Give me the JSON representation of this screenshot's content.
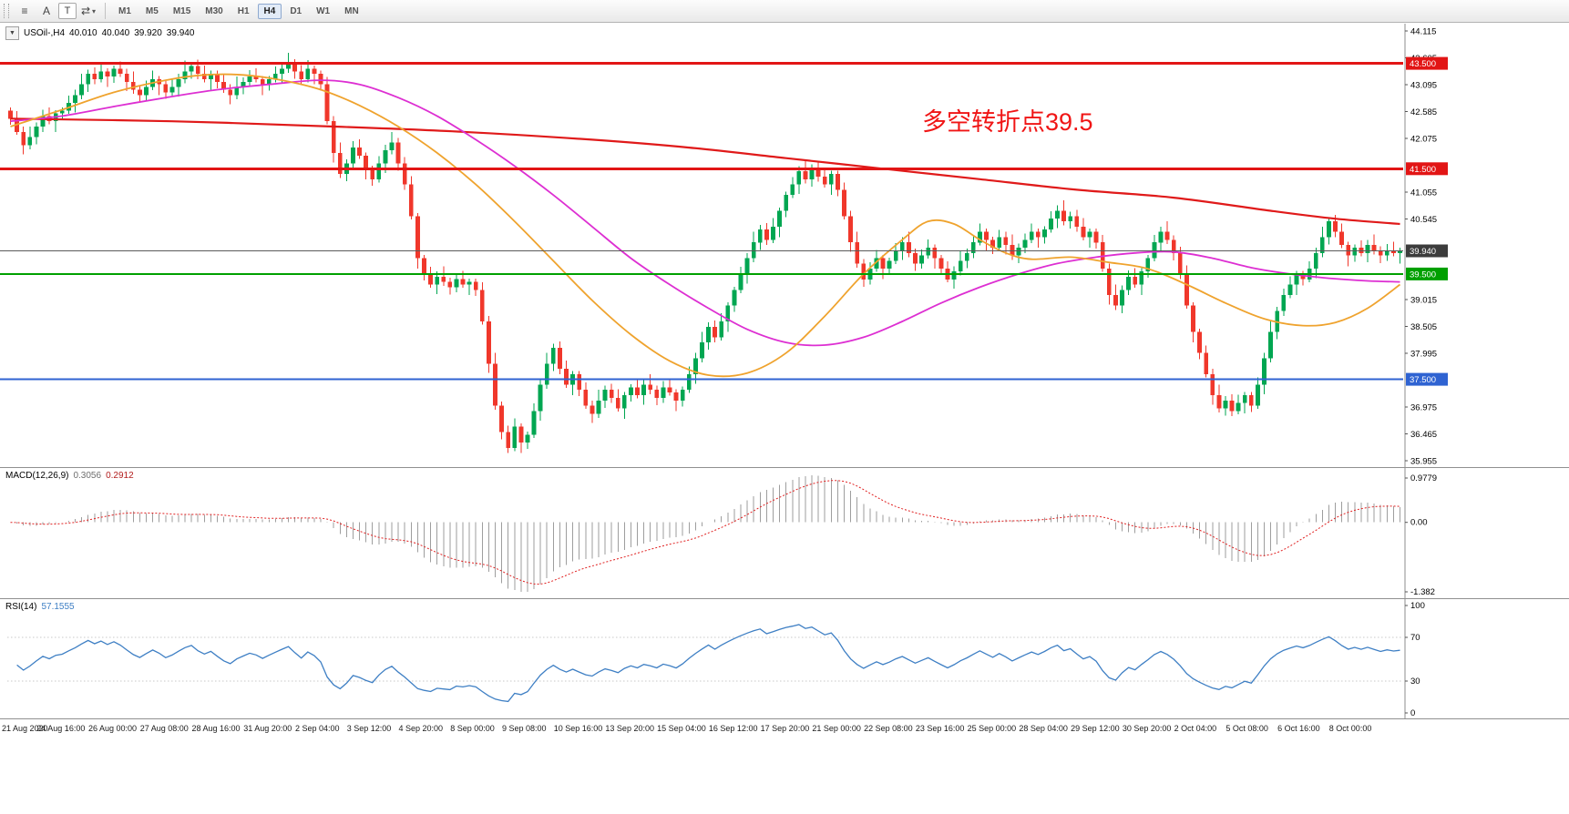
{
  "toolbar": {
    "tools": [
      {
        "name": "chart-list",
        "glyph": "≡"
      },
      {
        "name": "text-label",
        "glyph": "A"
      },
      {
        "name": "text-frame",
        "glyph": "T"
      },
      {
        "name": "cycle",
        "glyph": "⇄"
      },
      {
        "name": "dropdown",
        "glyph": "▾"
      }
    ],
    "timeframes": [
      {
        "label": "M1",
        "active": false
      },
      {
        "label": "M5",
        "active": false
      },
      {
        "label": "M15",
        "active": false
      },
      {
        "label": "M30",
        "active": false
      },
      {
        "label": "H1",
        "active": false
      },
      {
        "label": "H4",
        "active": true
      },
      {
        "label": "D1",
        "active": false
      },
      {
        "label": "W1",
        "active": false
      },
      {
        "label": "MN",
        "active": false
      }
    ]
  },
  "chart": {
    "header": {
      "collapse_glyph": "▼",
      "symbol_period": "USOil-,H4",
      "open": "40.010",
      "high": "40.040",
      "low": "39.920",
      "close": "39.940"
    },
    "annotation": {
      "text": "多空转折点39.5",
      "color": "#f01515"
    }
  },
  "macd": {
    "label": "MACD(12,26,9)",
    "value_main": "0.3056",
    "value_signal": "0.2912"
  },
  "rsi": {
    "label": "RSI(14)",
    "value": "57.1555"
  },
  "chart_data": {
    "type": "candlestick",
    "symbol": "USOil-",
    "timeframe": "H4",
    "ylim": [
      35.955,
      44.115
    ],
    "open_first": 42.6,
    "closes": [
      42.45,
      42.2,
      41.95,
      42.1,
      42.3,
      42.5,
      42.4,
      42.55,
      42.6,
      42.75,
      42.9,
      43.1,
      43.3,
      43.2,
      43.35,
      43.25,
      43.4,
      43.3,
      43.15,
      43.0,
      42.9,
      43.05,
      43.2,
      43.1,
      42.95,
      43.05,
      43.2,
      43.35,
      43.45,
      43.3,
      43.2,
      43.3,
      43.15,
      43.0,
      42.9,
      43.05,
      43.15,
      43.25,
      43.2,
      43.1,
      43.2,
      43.3,
      43.4,
      43.5,
      43.35,
      43.2,
      43.4,
      43.3,
      43.1,
      42.4,
      41.8,
      41.4,
      41.6,
      41.9,
      41.75,
      41.5,
      41.3,
      41.6,
      41.85,
      42.0,
      41.6,
      41.2,
      40.6,
      39.8,
      39.5,
      39.3,
      39.45,
      39.35,
      39.25,
      39.4,
      39.3,
      39.35,
      39.2,
      38.6,
      37.8,
      37.0,
      36.5,
      36.2,
      36.6,
      36.3,
      36.45,
      36.9,
      37.4,
      37.8,
      38.1,
      37.7,
      37.4,
      37.6,
      37.3,
      37.0,
      36.85,
      37.1,
      37.3,
      37.15,
      36.95,
      37.2,
      37.35,
      37.2,
      37.4,
      37.3,
      37.15,
      37.35,
      37.25,
      37.1,
      37.3,
      37.6,
      37.9,
      38.2,
      38.5,
      38.3,
      38.6,
      38.9,
      39.2,
      39.5,
      39.8,
      40.1,
      40.35,
      40.15,
      40.4,
      40.7,
      41.0,
      41.2,
      41.45,
      41.3,
      41.5,
      41.35,
      41.2,
      41.4,
      41.1,
      40.6,
      40.1,
      39.7,
      39.4,
      39.6,
      39.8,
      39.6,
      39.75,
      39.95,
      40.1,
      39.9,
      39.7,
      39.85,
      40.0,
      39.8,
      39.6,
      39.4,
      39.55,
      39.75,
      39.9,
      40.1,
      40.3,
      40.15,
      40.0,
      40.2,
      40.05,
      39.85,
      40.0,
      40.15,
      40.3,
      40.2,
      40.35,
      40.55,
      40.7,
      40.5,
      40.6,
      40.4,
      40.2,
      40.3,
      40.1,
      39.6,
      39.1,
      38.9,
      39.2,
      39.45,
      39.3,
      39.55,
      39.8,
      40.1,
      40.3,
      40.15,
      39.9,
      39.5,
      38.9,
      38.4,
      38.0,
      37.6,
      37.2,
      36.95,
      37.1,
      36.9,
      37.05,
      37.2,
      37.0,
      37.4,
      37.9,
      38.4,
      38.8,
      39.1,
      39.3,
      39.5,
      39.4,
      39.6,
      39.9,
      40.2,
      40.5,
      40.3,
      40.05,
      39.85,
      40.0,
      39.9,
      40.05,
      39.95,
      39.85,
      39.95,
      39.9,
      39.94
    ],
    "wick_high_cycle": [
      0.06,
      0.14,
      0.1,
      0.2,
      0.08,
      0.12,
      0.16,
      0.06
    ],
    "wick_low_cycle": [
      0.12,
      0.06,
      0.18,
      0.08,
      0.14,
      0.1,
      0.06,
      0.2
    ],
    "up_color": "#00a651",
    "down_color": "#f0372b",
    "price_ticks": [
      "44.115",
      "43.605",
      "43.095",
      "42.585",
      "42.075",
      "41.055",
      "40.545",
      "39.015",
      "38.505",
      "37.995",
      "36.975",
      "36.465",
      "35.955"
    ],
    "levels": [
      {
        "value": 43.5,
        "label": "43.500",
        "color": "#e21515",
        "width": 3
      },
      {
        "value": 41.5,
        "label": "41.500",
        "color": "#e21515",
        "width": 3
      },
      {
        "value": 39.94,
        "label": "39.940",
        "color": "#5a5a5a",
        "width": 1,
        "badge_color": "#3c3c3c"
      },
      {
        "value": 39.5,
        "label": "39.500",
        "color": "#00a000",
        "width": 2
      },
      {
        "value": 37.5,
        "label": "37.500",
        "color": "#2f63d2",
        "width": 2
      }
    ],
    "moving_averages": [
      {
        "name": "ma-slow-red",
        "color": "#e01a1a",
        "width": 2.2,
        "points": [
          [
            0,
            42.45
          ],
          [
            25,
            42.4
          ],
          [
            50,
            42.3
          ],
          [
            70,
            42.2
          ],
          [
            90,
            42.05
          ],
          [
            105,
            41.9
          ],
          [
            120,
            41.7
          ],
          [
            135,
            41.5
          ],
          [
            150,
            41.3
          ],
          [
            165,
            41.1
          ],
          [
            180,
            40.95
          ],
          [
            195,
            40.7
          ],
          [
            205,
            40.55
          ],
          [
            215,
            40.45
          ]
        ]
      },
      {
        "name": "ma-mid-magenta",
        "color": "#dd2fd2",
        "width": 1.8,
        "points": [
          [
            0,
            42.4
          ],
          [
            8,
            42.5
          ],
          [
            16,
            42.68
          ],
          [
            24,
            42.85
          ],
          [
            32,
            43.0
          ],
          [
            40,
            43.1
          ],
          [
            48,
            43.18
          ],
          [
            54,
            43.1
          ],
          [
            60,
            42.85
          ],
          [
            66,
            42.5
          ],
          [
            72,
            42.05
          ],
          [
            78,
            41.55
          ],
          [
            84,
            41.0
          ],
          [
            90,
            40.4
          ],
          [
            96,
            39.8
          ],
          [
            102,
            39.3
          ],
          [
            108,
            38.85
          ],
          [
            114,
            38.45
          ],
          [
            120,
            38.2
          ],
          [
            126,
            38.15
          ],
          [
            132,
            38.3
          ],
          [
            138,
            38.6
          ],
          [
            144,
            38.95
          ],
          [
            150,
            39.25
          ],
          [
            156,
            39.5
          ],
          [
            162,
            39.7
          ],
          [
            168,
            39.82
          ],
          [
            174,
            39.9
          ],
          [
            180,
            39.92
          ],
          [
            186,
            39.8
          ],
          [
            192,
            39.62
          ],
          [
            198,
            39.5
          ],
          [
            204,
            39.42
          ],
          [
            210,
            39.37
          ],
          [
            215,
            39.35
          ]
        ]
      },
      {
        "name": "ma-fast-orange",
        "color": "#efa32e",
        "width": 1.8,
        "points": [
          [
            0,
            42.3
          ],
          [
            8,
            42.62
          ],
          [
            16,
            42.95
          ],
          [
            24,
            43.18
          ],
          [
            30,
            43.28
          ],
          [
            36,
            43.28
          ],
          [
            42,
            43.18
          ],
          [
            48,
            43.0
          ],
          [
            54,
            42.7
          ],
          [
            60,
            42.3
          ],
          [
            66,
            41.8
          ],
          [
            72,
            41.2
          ],
          [
            78,
            40.5
          ],
          [
            84,
            39.75
          ],
          [
            90,
            39.0
          ],
          [
            96,
            38.35
          ],
          [
            102,
            37.85
          ],
          [
            108,
            37.58
          ],
          [
            114,
            37.62
          ],
          [
            120,
            38.0
          ],
          [
            126,
            38.7
          ],
          [
            132,
            39.5
          ],
          [
            138,
            40.15
          ],
          [
            142,
            40.5
          ],
          [
            146,
            40.45
          ],
          [
            150,
            40.15
          ],
          [
            154,
            39.9
          ],
          [
            158,
            39.78
          ],
          [
            164,
            39.82
          ],
          [
            170,
            39.72
          ],
          [
            176,
            39.6
          ],
          [
            182,
            39.3
          ],
          [
            188,
            38.95
          ],
          [
            194,
            38.65
          ],
          [
            200,
            38.52
          ],
          [
            205,
            38.58
          ],
          [
            210,
            38.85
          ],
          [
            215,
            39.3
          ]
        ]
      }
    ],
    "x_labels": [
      {
        "label": "21 Aug 2020",
        "bar": 0
      },
      {
        "label": "24 Aug 16:00",
        "bar": 8
      },
      {
        "label": "26 Aug 00:00",
        "bar": 16
      },
      {
        "label": "27 Aug 08:00",
        "bar": 24
      },
      {
        "label": "28 Aug 16:00",
        "bar": 32
      },
      {
        "label": "31 Aug 20:00",
        "bar": 40
      },
      {
        "label": "2 Sep 04:00",
        "bar": 48
      },
      {
        "label": "3 Sep 12:00",
        "bar": 56
      },
      {
        "label": "4 Sep 20:00",
        "bar": 64
      },
      {
        "label": "8 Sep 00:00",
        "bar": 72
      },
      {
        "label": "9 Sep 08:00",
        "bar": 80
      },
      {
        "label": "10 Sep 16:00",
        "bar": 88
      },
      {
        "label": "13 Sep 20:00",
        "bar": 96
      },
      {
        "label": "15 Sep 04:00",
        "bar": 104
      },
      {
        "label": "16 Sep 12:00",
        "bar": 112
      },
      {
        "label": "17 Sep 20:00",
        "bar": 120
      },
      {
        "label": "21 Sep 00:00",
        "bar": 128
      },
      {
        "label": "22 Sep 08:00",
        "bar": 136
      },
      {
        "label": "23 Sep 16:00",
        "bar": 144
      },
      {
        "label": "25 Sep 00:00",
        "bar": 152
      },
      {
        "label": "28 Sep 04:00",
        "bar": 160
      },
      {
        "label": "29 Sep 12:00",
        "bar": 168
      },
      {
        "label": "30 Sep 20:00",
        "bar": 176
      },
      {
        "label": "2 Oct 04:00",
        "bar": 184
      },
      {
        "label": "5 Oct 08:00",
        "bar": 192
      },
      {
        "label": "6 Oct 16:00",
        "bar": 200
      },
      {
        "label": "8 Oct 00:00",
        "bar": 208
      }
    ],
    "macd": {
      "fast": 12,
      "slow": 26,
      "signal_period": 9,
      "hist_color": "#9e9e9e",
      "signal_color": "#e02020",
      "axis_labels": [
        {
          "pos": "top",
          "label": "0.9779"
        },
        {
          "pos": "zero",
          "label": "0.00"
        },
        {
          "pos": "bottom",
          "label": "-1.382"
        }
      ]
    },
    "rsi": {
      "period": 14,
      "color": "#3e7fc4",
      "level_lines": [
        70,
        30
      ],
      "axis_labels": [
        {
          "value": 100,
          "label": "100"
        },
        {
          "value": 70,
          "label": "70"
        },
        {
          "value": 30,
          "label": "30"
        },
        {
          "value": 0,
          "label": "0"
        }
      ]
    }
  }
}
